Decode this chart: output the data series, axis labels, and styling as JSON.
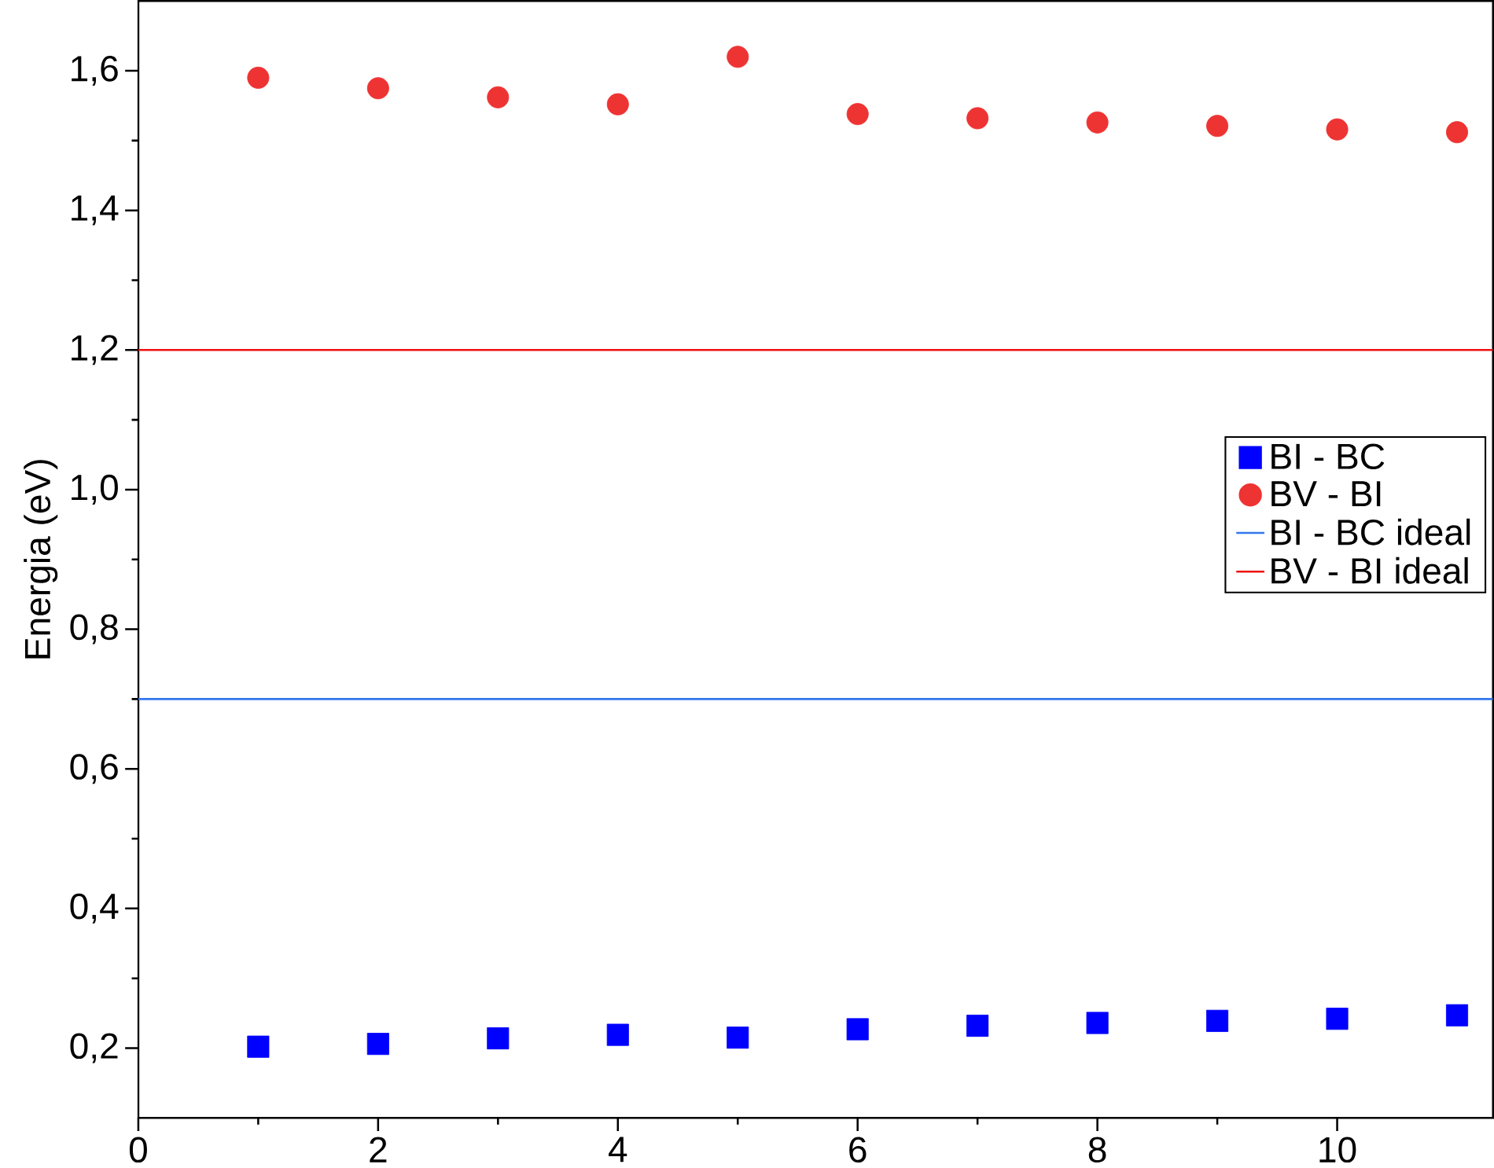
{
  "chart_data": {
    "type": "scatter",
    "ylabel": "Energia (eV)",
    "x": [
      1,
      2,
      3,
      4,
      5,
      6,
      7,
      8,
      9,
      10,
      11
    ],
    "series": [
      {
        "name": "BI - BC",
        "color": "#0000ff",
        "marker": "square",
        "values": [
          0.202,
          0.206,
          0.214,
          0.219,
          0.215,
          0.227,
          0.232,
          0.236,
          0.239,
          0.242,
          0.247
        ]
      },
      {
        "name": "BV - BI",
        "color": "#ee3333",
        "marker": "circle",
        "values": [
          1.59,
          1.575,
          1.562,
          1.552,
          1.62,
          1.538,
          1.532,
          1.526,
          1.521,
          1.516,
          1.512
        ]
      }
    ],
    "ref_lines": [
      {
        "axis": "y",
        "value": 0.7,
        "label": "BI - BC ideal",
        "color": "#3377ee",
        "line_style": "solid"
      },
      {
        "axis": "y",
        "value": 1.2,
        "label": "BV - BI ideal",
        "color": "#ee1111",
        "line_style": "solid"
      }
    ],
    "xlim": [
      0,
      11.3
    ],
    "ylim": [
      0.1,
      1.7
    ],
    "xticks": [
      0,
      2,
      4,
      6,
      8,
      10
    ],
    "yticks": [
      {
        "value": 0.2,
        "label": "0,2"
      },
      {
        "value": 0.4,
        "label": "0,4"
      },
      {
        "value": 0.6,
        "label": "0,6"
      },
      {
        "value": 0.8,
        "label": "0,8"
      },
      {
        "value": 1.0,
        "label": "1,0"
      },
      {
        "value": 1.2,
        "label": "1,2"
      },
      {
        "value": 1.4,
        "label": "1,4"
      },
      {
        "value": 1.6,
        "label": "1,6"
      }
    ],
    "legend": "right",
    "grid": false
  }
}
